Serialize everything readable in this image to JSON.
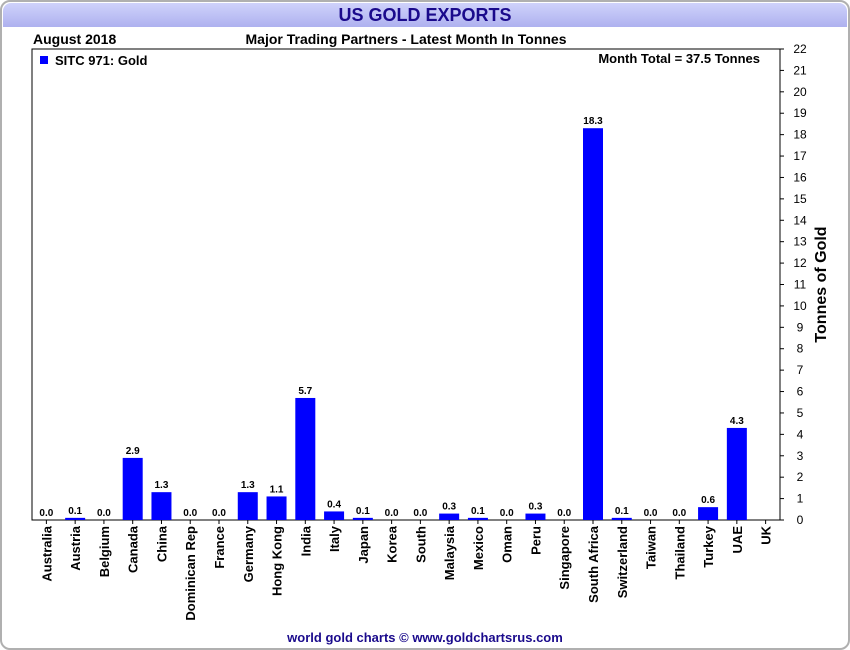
{
  "header": {
    "title": "US GOLD EXPORTS",
    "date": "August 2018",
    "subtitle": "Major Trading Partners - Latest Month In Tonnes"
  },
  "footer": {
    "credit": "world gold charts © www.goldchartsrus.com"
  },
  "colors": {
    "bar": "#0000ff",
    "title_bg": "#b9bcf3",
    "title_text": "#1a0a8c"
  },
  "chart_data": {
    "type": "bar",
    "title": "US GOLD EXPORTS",
    "subtitle": "Major Trading Partners - Latest Month In Tonnes",
    "xlabel": "",
    "ylabel": "Tonnes of Gold",
    "ylim": [
      0,
      22
    ],
    "yticks": [
      0,
      1,
      2,
      3,
      4,
      5,
      6,
      7,
      8,
      9,
      10,
      11,
      12,
      13,
      14,
      15,
      16,
      17,
      18,
      19,
      20,
      21,
      22
    ],
    "y_axis_position": "right",
    "grid": false,
    "legend": {
      "label": "SITC 971: Gold",
      "position": "top-left"
    },
    "annotation": "Month Total = 37.5 Tonnes",
    "categories": [
      "Australia",
      "Austria",
      "Belgium",
      "Canada",
      "China",
      "Dominican Rep",
      "France",
      "Germany",
      "Hong Kong",
      "India",
      "Italy",
      "Japan",
      "Korea",
      "South",
      "Malaysia",
      "Mexico",
      "Oman",
      "Peru",
      "Singapore",
      "South Africa",
      "Switzerland",
      "Taiwan",
      "Thailand",
      "Turkey",
      "UAE",
      "UK"
    ],
    "values": [
      0.0,
      0.1,
      0.0,
      2.9,
      1.3,
      0.0,
      0.0,
      1.3,
      1.1,
      5.7,
      0.4,
      0.1,
      0.0,
      0.0,
      0.3,
      0.1,
      0.0,
      0.3,
      0.0,
      18.3,
      0.1,
      0.0,
      0.0,
      0.6,
      4.3,
      null
    ],
    "data_labels": [
      "0.0",
      "0.1",
      "0.0",
      "2.9",
      "1.3",
      "0.0",
      "0.0",
      "1.3",
      "1.1",
      "5.7",
      "0.4",
      "0.1",
      "0.0",
      "0.0",
      "0.3",
      "0.1",
      "0.0",
      "0.3",
      "0.0",
      "18.3",
      "0.1",
      "0.0",
      "0.0",
      "0.6",
      "4.3",
      ""
    ]
  }
}
